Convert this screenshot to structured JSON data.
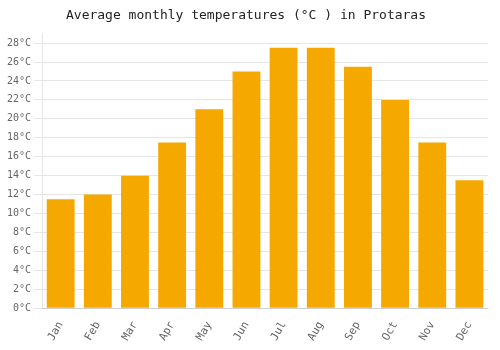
{
  "chart_data": {
    "type": "bar",
    "title": "Average monthly temperatures (°C ) in Protaras",
    "categories": [
      "Jan",
      "Feb",
      "Mar",
      "Apr",
      "May",
      "Jun",
      "Jul",
      "Aug",
      "Sep",
      "Oct",
      "Nov",
      "Dec"
    ],
    "values": [
      11.5,
      12.0,
      14.0,
      17.5,
      21.0,
      25.0,
      27.5,
      27.5,
      25.5,
      22.0,
      17.5,
      13.5
    ],
    "color": "#F5A800",
    "ylim": [
      0,
      29
    ],
    "yticks": [
      {
        "value": 0,
        "label": "0°C"
      },
      {
        "value": 2,
        "label": "2°C"
      },
      {
        "value": 4,
        "label": "4°C"
      },
      {
        "value": 6,
        "label": "6°C"
      },
      {
        "value": 8,
        "label": "8°C"
      },
      {
        "value": 10,
        "label": "10°C"
      },
      {
        "value": 12,
        "label": "12°C"
      },
      {
        "value": 14,
        "label": "14°C"
      },
      {
        "value": 16,
        "label": "16°C"
      },
      {
        "value": 18,
        "label": "18°C"
      },
      {
        "value": 20,
        "label": "20°C"
      },
      {
        "value": 22,
        "label": "22°C"
      },
      {
        "value": 24,
        "label": "24°C"
      },
      {
        "value": 26,
        "label": "26°C"
      },
      {
        "value": 28,
        "label": "28°C"
      }
    ],
    "grid": true
  }
}
